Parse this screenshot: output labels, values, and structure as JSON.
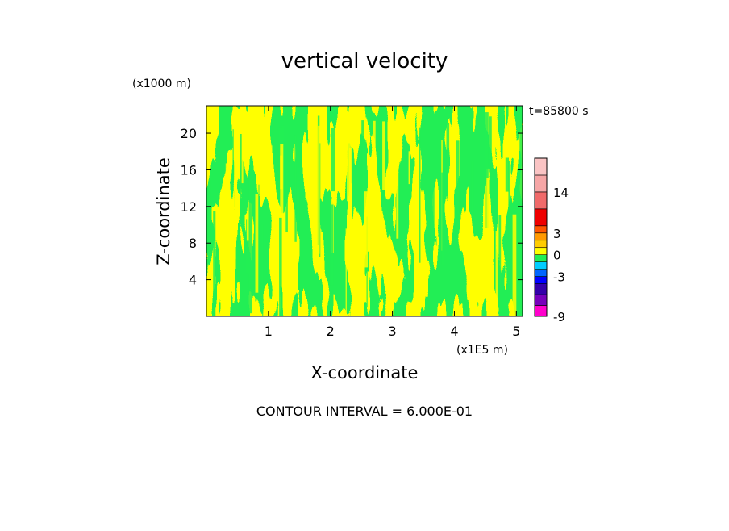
{
  "chart_data": {
    "type": "heatmap",
    "title": "vertical velocity",
    "xlabel": "X-coordinate",
    "ylabel": "Z-coordinate",
    "x_unit": "(x1E5 m)",
    "y_unit": "(x1000 m)",
    "x_ticks": [
      1,
      2,
      3,
      4,
      5
    ],
    "y_ticks": [
      4,
      8,
      12,
      16,
      20
    ],
    "xlim": [
      0,
      5.1
    ],
    "ylim": [
      0,
      23
    ],
    "time_label": "t=85800 s",
    "footer": "CONTOUR INTERVAL = 6.000E-01",
    "field": {
      "description": "banded vertical-velocity field, values near 0 in two contour classes",
      "dominant_classes": [
        "#ffff00",
        "#22ee55"
      ],
      "value_range_shown": [
        -0.6,
        0.6
      ]
    },
    "colorbar": {
      "tick_labels": [
        {
          "label": "14",
          "value": 14
        },
        {
          "label": "3",
          "value": 3
        },
        {
          "label": "0",
          "value": 0
        },
        {
          "label": "-3",
          "value": -3
        },
        {
          "label": "-9",
          "value": -9
        }
      ],
      "levels": [
        {
          "from": -9,
          "to": -7.5,
          "color": "#ff00cc"
        },
        {
          "from": -7.5,
          "to": -5.5,
          "color": "#7700bb"
        },
        {
          "from": -5.5,
          "to": -4,
          "color": "#3300aa"
        },
        {
          "from": -4,
          "to": -3,
          "color": "#0000ff"
        },
        {
          "from": -3,
          "to": -2,
          "color": "#0066ff"
        },
        {
          "from": -2,
          "to": -1,
          "color": "#00ccff"
        },
        {
          "from": -1,
          "to": 0,
          "color": "#22ee55"
        },
        {
          "from": 0,
          "to": 1,
          "color": "#ffff00"
        },
        {
          "from": 1,
          "to": 2,
          "color": "#ffcc00"
        },
        {
          "from": 2,
          "to": 3,
          "color": "#ff9900"
        },
        {
          "from": 3,
          "to": 4,
          "color": "#ff5500"
        },
        {
          "from": 4,
          "to": 7,
          "color": "#ee0000"
        },
        {
          "from": 7,
          "to": 14,
          "color": "#f06a6a"
        },
        {
          "from": 14,
          "to": 17,
          "color": "#f6a6a6"
        },
        {
          "from": 17,
          "to": 20,
          "color": "#fac4c4"
        }
      ]
    }
  }
}
